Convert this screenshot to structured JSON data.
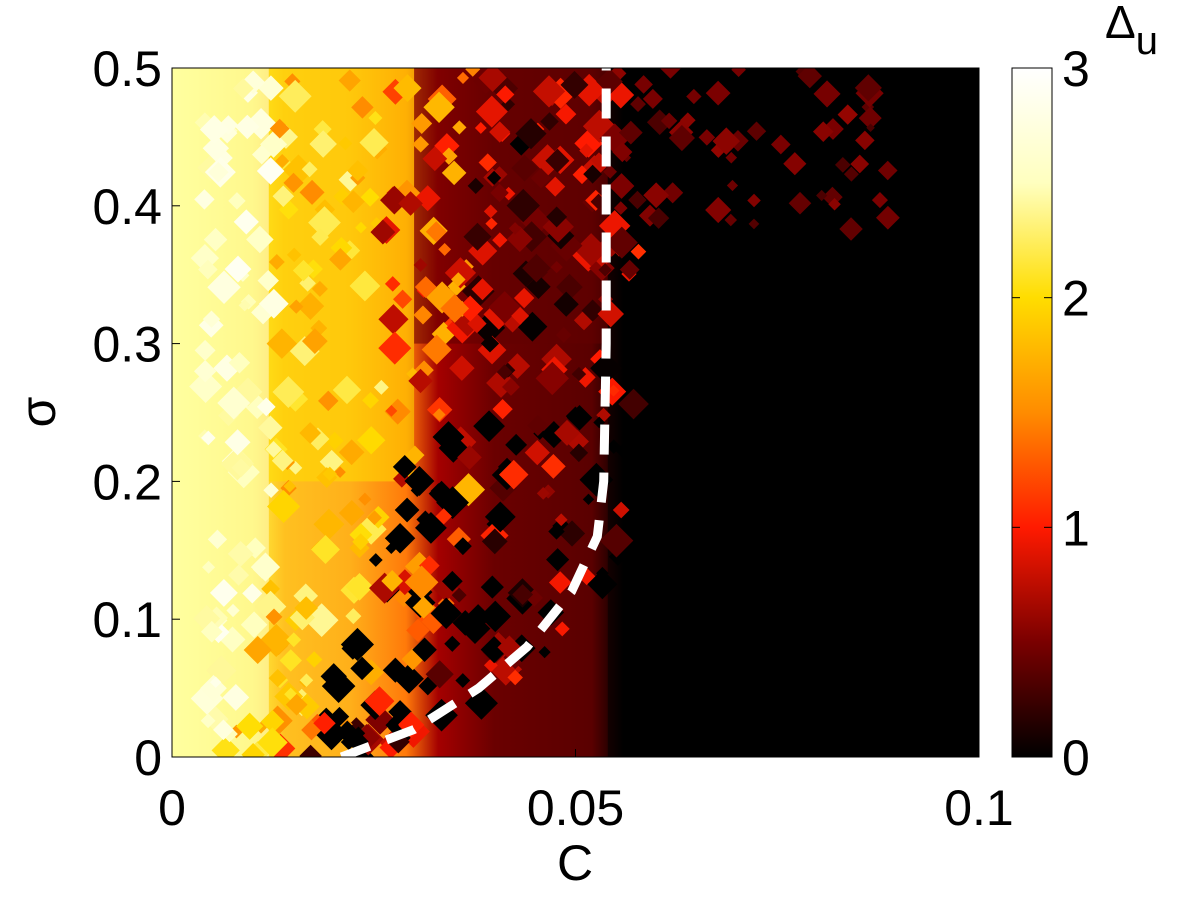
{
  "chart_data": {
    "type": "heatmap",
    "title": "",
    "xlabel": "C",
    "ylabel": "σ",
    "xlim": [
      0,
      0.1
    ],
    "ylim": [
      0,
      0.5
    ],
    "x_ticks": [
      0,
      0.05,
      0.1
    ],
    "x_tick_labels": [
      "0",
      "0.05",
      "0.1"
    ],
    "y_ticks": [
      0,
      0.1,
      0.2,
      0.3,
      0.4,
      0.5
    ],
    "y_tick_labels": [
      "0",
      "0.1",
      "0.2",
      "0.3",
      "0.4",
      "0.5"
    ],
    "grid": false,
    "colormap": "hot",
    "colorbar": {
      "label": "Δ",
      "label_subscript": "u",
      "range": [
        0,
        3
      ],
      "ticks": [
        0,
        1,
        2,
        3
      ],
      "tick_labels": [
        "0",
        "1",
        "2",
        "3"
      ],
      "stops": [
        "#000000",
        "#7a0000",
        "#ff1a00",
        "#ff8c00",
        "#ffdd00",
        "#ffffbf",
        "#ffffff"
      ]
    },
    "regions": [
      {
        "name": "yellow-band",
        "x_range": [
          0,
          0.012
        ],
        "y_range": [
          0,
          0.5
        ],
        "value": 2.6
      },
      {
        "name": "orange-band",
        "x_range": [
          0.012,
          0.03
        ],
        "y_range": [
          0.2,
          0.5
        ],
        "value": 2.0
      },
      {
        "name": "dark-red-band",
        "x_range": [
          0.03,
          0.054
        ],
        "y_range": [
          0.3,
          0.5
        ],
        "value": 0.4
      },
      {
        "name": "black-region",
        "x_range": [
          0.054,
          0.1
        ],
        "y_range": [
          0,
          0.5
        ],
        "value": 0
      }
    ],
    "boundary_curve": {
      "style": "dashed",
      "color": "#ffffff",
      "x": [
        0.021,
        0.03,
        0.038,
        0.044,
        0.0495,
        0.0527,
        0.0535,
        0.0538,
        0.0538
      ],
      "y": [
        0.0,
        0.02,
        0.05,
        0.08,
        0.12,
        0.16,
        0.2,
        0.3,
        0.5
      ]
    }
  }
}
